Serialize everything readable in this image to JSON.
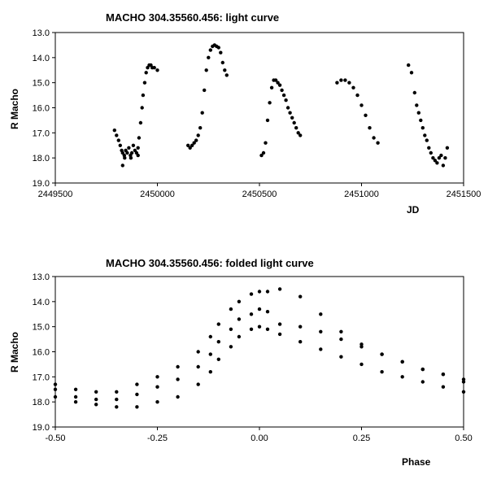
{
  "chart_data": [
    {
      "type": "scatter",
      "title": "MACHO 304.35560.456: light curve",
      "xlabel": "JD",
      "ylabel": "R Macho",
      "xlim": [
        2449500,
        2451500
      ],
      "ylim": [
        13.0,
        19.0
      ],
      "y_inverted": true,
      "x_ticks": [
        "2449500",
        "2450000",
        "2450500",
        "2451000",
        "2451500"
      ],
      "y_ticks": [
        "13.0",
        "14.0",
        "15.0",
        "16.0",
        "17.0",
        "18.0",
        "19.0"
      ],
      "grid": false,
      "marker_color": "#000000",
      "series": [
        {
          "x": [
            2449790,
            2449800,
            2449810,
            2449818,
            2449825,
            2449830,
            2449838,
            2449845,
            2449852,
            2449860,
            2449868,
            2449875,
            2449882,
            2449890,
            2449898,
            2449905,
            2449910,
            2449918,
            2449925,
            2449930,
            2449938,
            2449945,
            2449952,
            2449960,
            2449968,
            2449975,
            2449985,
            2450000,
            2449840,
            2449870,
            2449905,
            2449830
          ],
          "y": [
            16.9,
            17.1,
            17.3,
            17.5,
            17.7,
            17.8,
            17.9,
            17.7,
            17.8,
            17.6,
            17.9,
            17.8,
            17.5,
            17.7,
            17.8,
            17.6,
            17.2,
            16.6,
            16.0,
            15.5,
            15.0,
            14.6,
            14.4,
            14.3,
            14.3,
            14.4,
            14.4,
            14.5,
            18.0,
            18.0,
            17.9,
            18.3
          ]
        },
        {
          "x": [
            2450150,
            2450160,
            2450170,
            2450180,
            2450190,
            2450200,
            2450210,
            2450220,
            2450230,
            2450240,
            2450250,
            2450260,
            2450270,
            2450280,
            2450290,
            2450300,
            2450310,
            2450320,
            2450330,
            2450340
          ],
          "y": [
            17.5,
            17.6,
            17.5,
            17.4,
            17.3,
            17.1,
            16.8,
            16.2,
            15.3,
            14.5,
            14.0,
            13.7,
            13.55,
            13.5,
            13.55,
            13.6,
            13.8,
            14.2,
            14.5,
            14.7
          ]
        },
        {
          "x": [
            2450510,
            2450520,
            2450530,
            2450540,
            2450550,
            2450560,
            2450570,
            2450580,
            2450590,
            2450600,
            2450610,
            2450620,
            2450630,
            2450640,
            2450650,
            2450660,
            2450670,
            2450680,
            2450690,
            2450700
          ],
          "y": [
            17.9,
            17.8,
            17.4,
            16.5,
            15.8,
            15.2,
            14.9,
            14.9,
            15.0,
            15.1,
            15.3,
            15.5,
            15.7,
            16.0,
            16.2,
            16.4,
            16.6,
            16.8,
            17.0,
            17.1
          ]
        },
        {
          "x": [
            2450880,
            2450900,
            2450920,
            2450940,
            2450960,
            2450980,
            2451000,
            2451020,
            2451040,
            2451060,
            2451080
          ],
          "y": [
            15.0,
            14.9,
            14.9,
            15.0,
            15.2,
            15.5,
            15.9,
            16.3,
            16.8,
            17.2,
            17.4
          ]
        },
        {
          "x": [
            2451230,
            2451245,
            2451260,
            2451270,
            2451280,
            2451290,
            2451300,
            2451310,
            2451320,
            2451330,
            2451340,
            2451350,
            2451360,
            2451370,
            2451380,
            2451390,
            2451400,
            2451410,
            2451420
          ],
          "y": [
            14.3,
            14.6,
            15.4,
            15.9,
            16.2,
            16.5,
            16.8,
            17.1,
            17.3,
            17.6,
            17.8,
            18.0,
            18.1,
            18.2,
            18.0,
            17.9,
            18.3,
            18.0,
            17.6
          ]
        }
      ]
    },
    {
      "type": "scatter",
      "title": "MACHO 304.35560.456: folded light curve",
      "xlabel": "Phase",
      "ylabel": "R Macho",
      "xlim": [
        -0.5,
        0.5
      ],
      "ylim": [
        13.0,
        19.0
      ],
      "y_inverted": true,
      "x_ticks": [
        "-0.50",
        "-0.25",
        "0.00",
        "0.25",
        "0.50"
      ],
      "y_ticks": [
        "13.0",
        "14.0",
        "15.0",
        "16.0",
        "17.0",
        "18.0",
        "19.0"
      ],
      "grid": false,
      "marker_color": "#000000",
      "series": [
        {
          "x": [
            -0.5,
            -0.45,
            -0.4,
            -0.35,
            -0.3,
            -0.25,
            -0.2,
            -0.15,
            -0.12,
            -0.1,
            -0.07,
            -0.05,
            -0.02,
            0.0,
            0.02,
            0.05,
            0.1,
            0.15,
            0.2,
            0.25,
            0.3,
            0.35,
            0.4,
            0.45,
            0.5
          ],
          "y": [
            17.3,
            17.5,
            17.6,
            17.6,
            17.3,
            17.0,
            16.6,
            16.0,
            15.4,
            14.9,
            14.3,
            14.0,
            13.7,
            13.6,
            13.6,
            13.5,
            13.8,
            14.5,
            15.2,
            15.7,
            16.1,
            16.4,
            16.7,
            16.9,
            17.1
          ]
        },
        {
          "x": [
            -0.5,
            -0.45,
            -0.4,
            -0.35,
            -0.3,
            -0.25,
            -0.2,
            -0.15,
            -0.12,
            -0.1,
            -0.07,
            -0.05,
            -0.02,
            0.0,
            0.02,
            0.05,
            0.1,
            0.15,
            0.2,
            0.25,
            0.3,
            0.35,
            0.4,
            0.45,
            0.5
          ],
          "y": [
            17.5,
            17.8,
            17.9,
            17.9,
            17.7,
            17.4,
            17.1,
            16.6,
            16.1,
            15.6,
            15.1,
            14.7,
            14.5,
            14.3,
            14.4,
            14.9,
            15.0,
            15.2,
            15.5,
            15.8,
            16.1,
            16.4,
            16.7,
            16.9,
            17.2
          ]
        },
        {
          "x": [
            -0.5,
            -0.45,
            -0.4,
            -0.35,
            -0.3,
            -0.25,
            -0.2,
            -0.15,
            -0.12,
            -0.1,
            -0.07,
            -0.05,
            -0.02,
            0.0,
            0.02,
            0.05,
            0.1,
            0.15,
            0.2,
            0.25,
            0.3,
            0.35,
            0.4,
            0.45,
            0.5
          ],
          "y": [
            17.8,
            18.0,
            18.1,
            18.2,
            18.2,
            18.0,
            17.8,
            17.3,
            16.8,
            16.3,
            15.8,
            15.4,
            15.1,
            15.0,
            15.1,
            15.3,
            15.6,
            15.9,
            16.2,
            16.5,
            16.8,
            17.0,
            17.2,
            17.4,
            17.6
          ]
        }
      ]
    }
  ]
}
